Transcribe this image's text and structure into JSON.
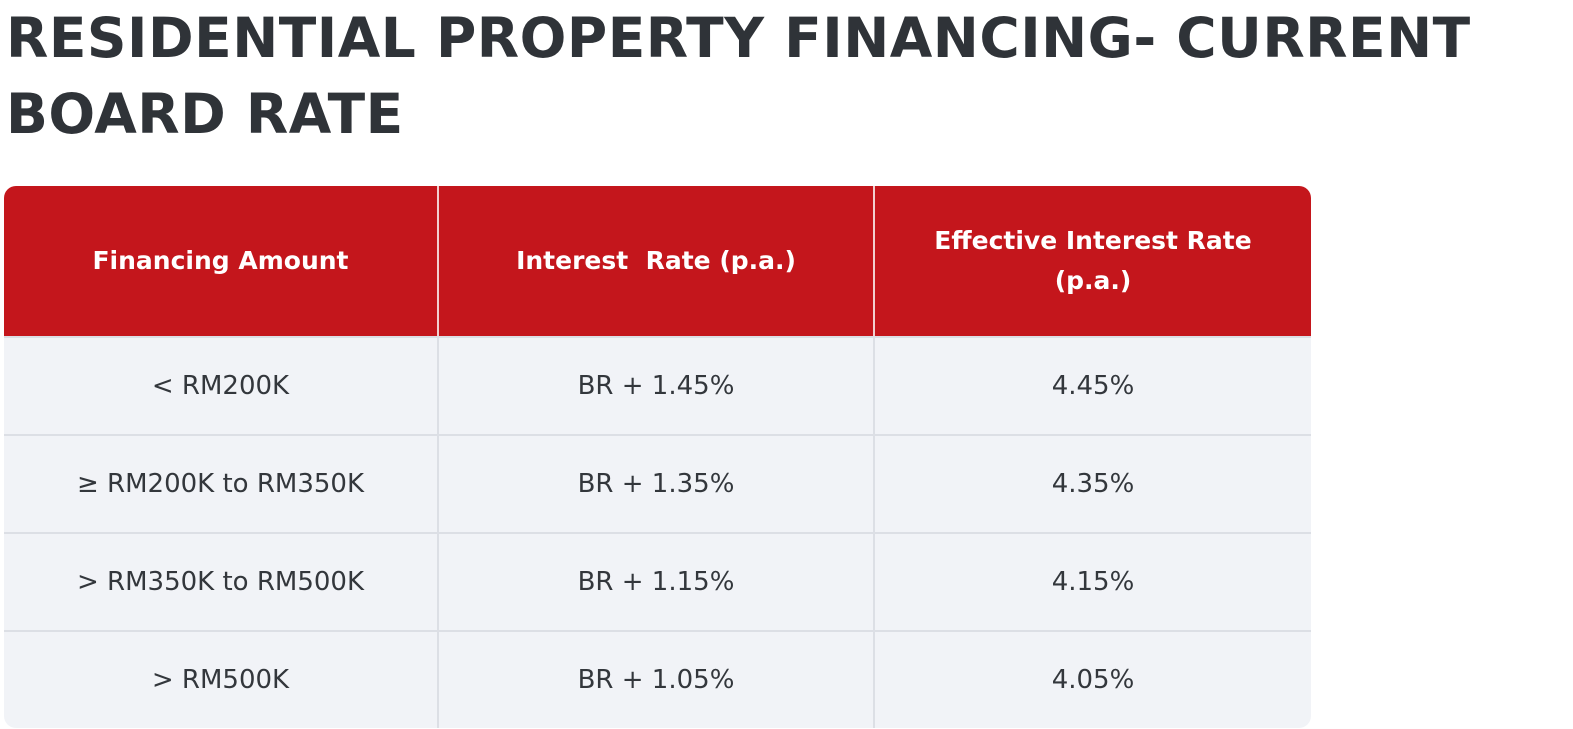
{
  "title_lines": [
    "RESIDENTIAL PROPERTY FINANCING- CURRENT",
    "BOARD RATE"
  ],
  "colors": {
    "header_bg": "#c4161c",
    "row_bg": "#f1f3f7",
    "title": "#2f3338"
  },
  "table": {
    "headers": [
      "Financing Amount",
      "Interest  Rate (p.a.)",
      "Effective Interest Rate (p.a.)"
    ],
    "rows": [
      [
        "< RM200K",
        "BR + 1.45%",
        "4.45%"
      ],
      [
        "≥ RM200K to RM350K",
        "BR + 1.35%",
        "4.35%"
      ],
      [
        "> RM350K to RM500K",
        "BR + 1.15%",
        "4.15%"
      ],
      [
        "> RM500K",
        "BR + 1.05%",
        "4.05%"
      ]
    ]
  }
}
